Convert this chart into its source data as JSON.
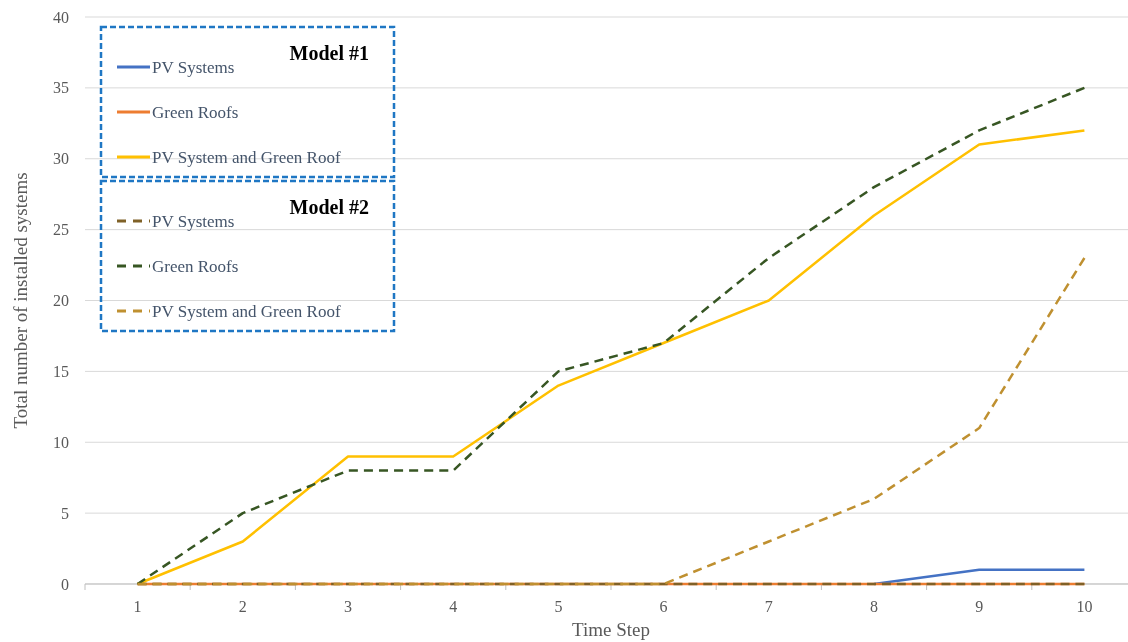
{
  "chart_data": {
    "type": "line",
    "xlabel": "Time Step",
    "ylabel": "Total number of installed systems",
    "categories": [
      "1",
      "2",
      "3",
      "4",
      "5",
      "6",
      "7",
      "8",
      "9",
      "10"
    ],
    "ylim": [
      0,
      40
    ],
    "yticks": [
      0,
      5,
      10,
      15,
      20,
      25,
      30,
      35,
      40
    ],
    "grid": "y",
    "legend": "top left",
    "marker": "none",
    "annotations": [
      "Model #1",
      "Model #2"
    ],
    "series": [
      {
        "name": "PV Systems",
        "color": "#4472c4",
        "line_style": "solid",
        "values": [
          null,
          null,
          null,
          null,
          null,
          null,
          null,
          0,
          1,
          1
        ]
      },
      {
        "name": "Green Roofs",
        "color": "#ed7d31",
        "line_style": "solid",
        "values": [
          0,
          0,
          0,
          0,
          0,
          0,
          0,
          0,
          0,
          0
        ]
      },
      {
        "name": "PV System and Green Roof",
        "color": "#ffc000",
        "line_style": "solid",
        "values": [
          0,
          3,
          9,
          9,
          14,
          17,
          20,
          26,
          31,
          32
        ]
      },
      {
        "name": "PV Systems",
        "color": "#7f6127",
        "line_style": "dashed",
        "values": [
          0,
          0,
          0,
          0,
          0,
          0,
          0,
          0,
          0,
          0
        ]
      },
      {
        "name": "Green Roofs",
        "color": "#375623",
        "line_style": "dashed",
        "values": [
          0,
          5,
          8,
          8,
          15,
          17,
          23,
          28,
          32,
          35
        ]
      },
      {
        "name": "PV System and Green Roof",
        "color": "#bf9030",
        "line_style": "dashed",
        "values": [
          0,
          0,
          0,
          0,
          0,
          0,
          3,
          6,
          11,
          23
        ]
      }
    ]
  }
}
